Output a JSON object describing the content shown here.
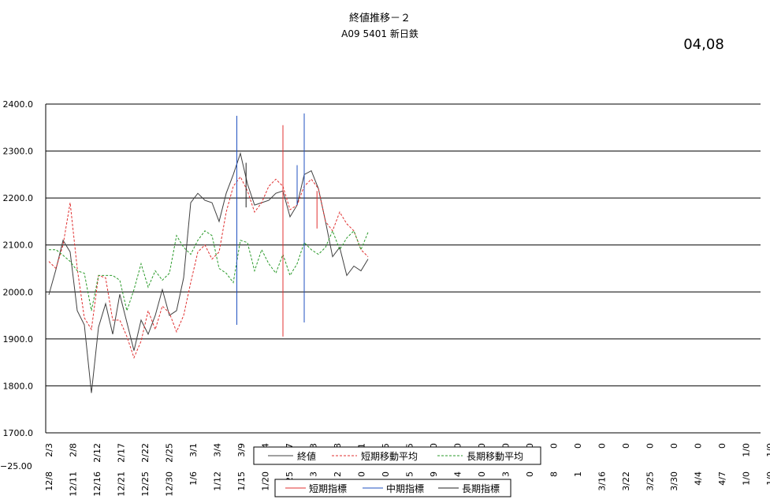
{
  "title": "終値推移－２",
  "subtitle": "A09 5401 新日鉄",
  "date_code": "04,08",
  "stray_tick": "−25.00",
  "chart_data": {
    "type": "line",
    "ylim": [
      1700,
      2400
    ],
    "yticks": [
      "1700.0",
      "1800.0",
      "1900.0",
      "2000.0",
      "2100.0",
      "2200.0",
      "2300.0",
      "2400.0"
    ],
    "grid": true,
    "x_labels_row1": [
      "2/3",
      "2/8",
      "2/12",
      "2/17",
      "2/22",
      "2/25",
      "3/1",
      "3/4",
      "3/9",
      "3/14",
      "7",
      "3",
      "8",
      "1",
      "5",
      "5",
      "0",
      "0",
      "0",
      "0",
      "0",
      "0",
      "0",
      "0",
      "0",
      "0",
      "0",
      "0",
      "0",
      "1/0",
      "1/0",
      "1/0",
      "1/0",
      "1/0",
      "1/0",
      "1/0",
      "1/0",
      "1/0"
    ],
    "x_labels_row2": [
      "12/8",
      "12/11",
      "12/16",
      "12/21",
      "12/25",
      "12/30",
      "1/6",
      "1/12",
      "1/15",
      "1/20",
      "1/25",
      "3",
      "2",
      "0",
      "0",
      "5",
      "9",
      "4",
      "0",
      "3",
      "0",
      "8",
      "1",
      "3/16",
      "3/22",
      "3/25",
      "3/30",
      "4/4",
      "4/7",
      "1/0",
      "1/0",
      "1/0",
      "1/0",
      "1/0",
      "1/0",
      "1/0",
      "1/0",
      "1/0"
    ],
    "series": [
      {
        "name": "終値",
        "color": "#404040",
        "dash": "solid",
        "values": [
          1994,
          2048,
          2110,
          2085,
          1960,
          1930,
          1785,
          1925,
          1975,
          1910,
          1995,
          1935,
          1875,
          1940,
          1910,
          1950,
          2005,
          1950,
          1960,
          2030,
          2190,
          2210,
          2195,
          2190,
          2150,
          2210,
          2250,
          2295,
          2230,
          2185,
          2190,
          2195,
          2210,
          2215,
          2160,
          2185,
          2250,
          2258,
          2220,
          2150,
          2075,
          2095,
          2035,
          2055,
          2045,
          2070
        ]
      },
      {
        "name": "短期移動平均",
        "color": "#e03030",
        "dash": "3,2",
        "values": [
          2065,
          2050,
          2100,
          2190,
          2050,
          1945,
          1920,
          2035,
          2030,
          1940,
          1940,
          1905,
          1860,
          1895,
          1960,
          1920,
          1970,
          1955,
          1915,
          1950,
          2020,
          2085,
          2100,
          2070,
          2085,
          2170,
          2225,
          2245,
          2215,
          2170,
          2190,
          2225,
          2240,
          2225,
          2175,
          2185,
          2225,
          2240,
          2220,
          2150,
          2130,
          2170,
          2145,
          2130,
          2090,
          2075
        ]
      },
      {
        "name": "長期移動平均",
        "color": "#2a9a2a",
        "dash": "3,2",
        "values": [
          2090,
          2090,
          2078,
          2065,
          2045,
          2040,
          1960,
          2035,
          2035,
          2035,
          2025,
          1960,
          2005,
          2060,
          2010,
          2045,
          2025,
          2040,
          2120,
          2095,
          2080,
          2110,
          2130,
          2120,
          2050,
          2040,
          2020,
          2110,
          2105,
          2045,
          2090,
          2060,
          2040,
          2080,
          2035,
          2060,
          2105,
          2090,
          2080,
          2095,
          2130,
          2090,
          2115,
          2130,
          2090,
          2127
        ]
      }
    ],
    "indicator_series": [
      {
        "name": "短期指標",
        "color": "#e03030"
      },
      {
        "name": "中期指標",
        "color": "#2050c0"
      },
      {
        "name": "長期指標",
        "color": "#202020"
      }
    ],
    "indicator_marks": [
      {
        "x": 26.5,
        "y0": 1930,
        "y1": 2375,
        "color": "#2050c0"
      },
      {
        "x": 27.8,
        "y0": 2180,
        "y1": 2275,
        "color": "#202020"
      },
      {
        "x": 33.0,
        "y0": 1905,
        "y1": 2355,
        "color": "#e03030"
      },
      {
        "x": 35.0,
        "y0": 2185,
        "y1": 2270,
        "color": "#2050c0"
      },
      {
        "x": 36.0,
        "y0": 1935,
        "y1": 2380,
        "color": "#2050c0"
      },
      {
        "x": 37.8,
        "y0": 2135,
        "y1": 2215,
        "color": "#e03030"
      }
    ]
  }
}
